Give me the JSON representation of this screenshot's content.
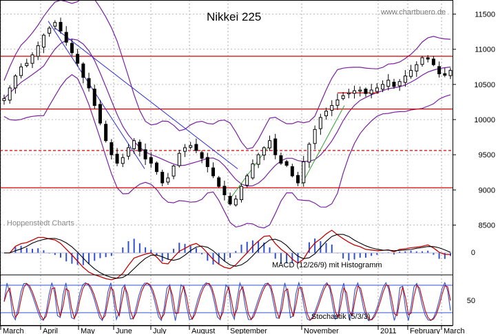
{
  "chart_data": {
    "type": "candlestick",
    "title": "Nikkei 225",
    "source": "www.chartbuero.de",
    "watermark": "Hoppenstedt Charts",
    "x_labels": [
      "March",
      "April",
      "May",
      "June",
      "July",
      "August",
      "September",
      "November",
      "2011",
      "February",
      "March"
    ],
    "y_ticks": [
      8500,
      9000,
      9500,
      10000,
      10500,
      11000,
      11500
    ],
    "ylim": [
      8300,
      11700
    ],
    "price": {
      "closes": [
        10300,
        10450,
        10620,
        10750,
        10800,
        10920,
        11050,
        11200,
        11300,
        11380,
        11260,
        11100,
        10950,
        10800,
        10600,
        10450,
        10200,
        9950,
        9700,
        9500,
        9380,
        9460,
        9600,
        9700,
        9550,
        9440,
        9380,
        9260,
        9100,
        9170,
        9340,
        9520,
        9600,
        9630,
        9560,
        9450,
        9330,
        9200,
        9050,
        8930,
        8800,
        8870,
        9050,
        9200,
        9370,
        9500,
        9600,
        9700,
        9500,
        9380,
        9350,
        9200,
        9100,
        9400,
        9650,
        9860,
        10030,
        10120,
        10200,
        10280,
        10340,
        10380,
        10410,
        10420,
        10370,
        10420,
        10450,
        10500,
        10560,
        10470,
        10540,
        10620,
        10700,
        10780,
        10880,
        10860,
        10780,
        10650,
        10630,
        10700
      ],
      "high_red_lines": [
        10900,
        10150,
        9030
      ],
      "dashed_red_line": 9560,
      "hlines_note": "horizontal support/resistance lines"
    },
    "macd": {
      "label": "MACD (12/26/9) mit Histogramm",
      "zero_label": "0"
    },
    "stochastic": {
      "label": "Stochastik (5/3/3)",
      "mid_label": "50"
    },
    "colors": {
      "candles": "#000000",
      "bollinger": "#7a1fa0",
      "support_lines": "#d40000",
      "trend_blue": "#2a2ad6",
      "trend_green": "#2ea02e",
      "macd_line": "#c00000",
      "signal_line": "#000000",
      "histogram": "#2f4fd0",
      "stoch_fast": "#2f4fd0",
      "stoch_slow": "#c00000"
    }
  }
}
